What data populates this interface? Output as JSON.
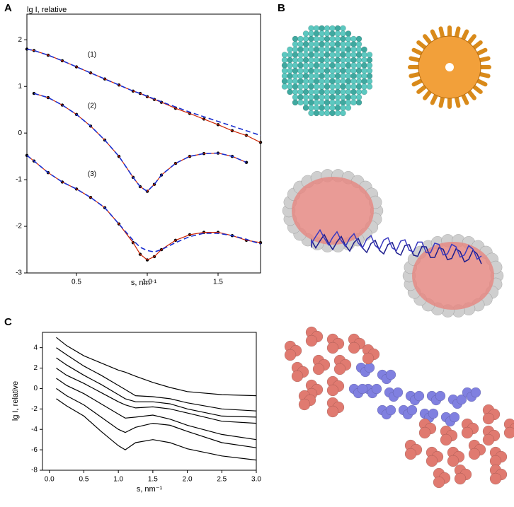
{
  "panel_labels": [
    "A",
    "B",
    "C"
  ],
  "chart_data": [
    {
      "type": "line",
      "x_label": "s, nm⁻¹",
      "y_label": "lg I, relative",
      "x": [
        0.15,
        0.2,
        0.3,
        0.4,
        0.5,
        0.6,
        0.7,
        0.8,
        0.9,
        0.95,
        1.0,
        1.05,
        1.1,
        1.2,
        1.3,
        1.4,
        1.5,
        1.6,
        1.7,
        1.8
      ],
      "xlim": [
        0.15,
        1.8
      ],
      "xticks": [
        0.5,
        {
          "value": 1,
          "label": "1.0"
        },
        1.5
      ],
      "ylim": [
        -3,
        2.55
      ],
      "yticks": [
        -3,
        -2,
        -1,
        0,
        1,
        2
      ],
      "annotations": [
        {
          "text": "(1)",
          "x": 0.61,
          "y": 1.68
        },
        {
          "text": "(2)",
          "x": 0.61,
          "y": 0.58
        },
        {
          "text": "(3)",
          "x": 0.61,
          "y": -0.88
        }
      ],
      "series": [
        {
          "style": "points",
          "color": "#000000",
          "values": [
            1.8,
            1.77,
            1.67,
            1.55,
            1.42,
            1.29,
            1.16,
            1.03,
            0.9,
            0.85,
            0.78,
            0.72,
            0.66,
            0.53,
            0.42,
            0.3,
            0.18,
            0.05,
            -0.05,
            -0.2
          ]
        },
        {
          "style": "line",
          "color": "#cc2200",
          "values": [
            1.8,
            1.77,
            1.67,
            1.55,
            1.42,
            1.29,
            1.16,
            1.03,
            0.9,
            0.85,
            0.78,
            0.72,
            0.66,
            0.53,
            0.42,
            0.3,
            0.18,
            0.05,
            -0.05,
            -0.2
          ]
        },
        {
          "style": "dashed",
          "color": "#1a2fd0",
          "values": [
            1.8,
            1.77,
            1.67,
            1.55,
            1.42,
            1.29,
            1.16,
            1.03,
            0.9,
            0.85,
            0.79,
            0.73,
            0.67,
            0.56,
            0.45,
            0.35,
            0.25,
            0.15,
            0.05,
            -0.05
          ]
        },
        {
          "style": "points",
          "color": "#000000",
          "values": [
            null,
            0.85,
            0.76,
            0.6,
            0.4,
            0.15,
            -0.15,
            -0.5,
            -0.95,
            -1.15,
            -1.25,
            -1.1,
            -0.9,
            -0.65,
            -0.5,
            -0.44,
            -0.43,
            -0.5,
            -0.63,
            null
          ]
        },
        {
          "style": "line",
          "color": "#cc2200",
          "values": [
            null,
            0.85,
            0.76,
            0.6,
            0.4,
            0.15,
            -0.15,
            -0.5,
            -0.95,
            -1.15,
            -1.25,
            -1.1,
            -0.9,
            -0.65,
            -0.5,
            -0.44,
            -0.43,
            -0.5,
            -0.63,
            null
          ]
        },
        {
          "style": "dashed",
          "color": "#1a2fd0",
          "values": [
            null,
            0.85,
            0.76,
            0.6,
            0.4,
            0.15,
            -0.15,
            -0.5,
            -0.95,
            -1.15,
            -1.25,
            -1.1,
            -0.9,
            -0.65,
            -0.5,
            -0.44,
            -0.43,
            -0.5,
            -0.63,
            null
          ]
        },
        {
          "style": "points",
          "color": "#000000",
          "values": [
            -0.48,
            -0.6,
            -0.85,
            -1.05,
            -1.2,
            -1.38,
            -1.6,
            -1.95,
            -2.35,
            -2.6,
            -2.72,
            -2.65,
            -2.5,
            -2.3,
            -2.18,
            -2.13,
            -2.13,
            -2.2,
            -2.3,
            -2.35
          ]
        },
        {
          "style": "line",
          "color": "#cc2200",
          "values": [
            -0.48,
            -0.6,
            -0.85,
            -1.05,
            -1.2,
            -1.38,
            -1.6,
            -1.95,
            -2.35,
            -2.6,
            -2.72,
            -2.65,
            -2.5,
            -2.3,
            -2.18,
            -2.13,
            -2.13,
            -2.2,
            -2.3,
            -2.35
          ]
        },
        {
          "style": "dashed",
          "color": "#1a2fd0",
          "values": [
            -0.48,
            -0.6,
            -0.85,
            -1.05,
            -1.2,
            -1.38,
            -1.6,
            -1.95,
            -2.3,
            -2.45,
            -2.52,
            -2.55,
            -2.5,
            -2.35,
            -2.22,
            -2.15,
            -2.15,
            -2.2,
            -2.28,
            -2.38
          ]
        }
      ]
    },
    {
      "type": "line",
      "x_label": "s, nm⁻¹",
      "y_label": "lg I, relative",
      "x": [
        0.1,
        0.25,
        0.5,
        0.75,
        1.0,
        1.1,
        1.25,
        1.5,
        1.75,
        2.0,
        2.5,
        3.0
      ],
      "xlim": [
        -0.1,
        3.0
      ],
      "xticks": [
        {
          "value": 0,
          "label": "0.0"
        },
        0.5,
        {
          "value": 1,
          "label": "1.0"
        },
        1.5,
        {
          "value": 2,
          "label": "2.0"
        },
        2.5,
        {
          "value": 3,
          "label": "3.0"
        }
      ],
      "ylim": [
        -8,
        5.5
      ],
      "yticks": [
        -8,
        -6,
        -4,
        -2,
        0,
        2,
        4
      ],
      "series": [
        {
          "style": "line",
          "color": "#000000",
          "values": [
            5,
            4.2,
            3.2,
            2.5,
            1.8,
            1.6,
            1.2,
            0.6,
            0.1,
            -0.3,
            -0.6,
            -0.7
          ]
        },
        {
          "style": "line",
          "color": "#000000",
          "values": [
            4,
            3.3,
            2.2,
            1.3,
            0.3,
            -0.1,
            -0.7,
            -0.8,
            -1.0,
            -1.4,
            -2.0,
            -2.2
          ]
        },
        {
          "style": "line",
          "color": "#000000",
          "values": [
            3,
            2.3,
            1.3,
            0.4,
            -0.6,
            -1.0,
            -1.3,
            -1.3,
            -1.5,
            -2.0,
            -2.7,
            -2.8
          ]
        },
        {
          "style": "line",
          "color": "#000000",
          "values": [
            2,
            1.3,
            0.5,
            -0.4,
            -1.3,
            -1.6,
            -1.9,
            -1.8,
            -2.0,
            -2.4,
            -3.2,
            -3.4
          ]
        },
        {
          "style": "line",
          "color": "#000000",
          "values": [
            1,
            0.3,
            -0.5,
            -1.5,
            -2.5,
            -2.9,
            -2.8,
            -2.6,
            -3.0,
            -3.6,
            -4.5,
            -5.0
          ]
        },
        {
          "style": "line",
          "color": "#000000",
          "values": [
            0,
            -0.7,
            -1.6,
            -2.8,
            -4.0,
            -4.3,
            -3.8,
            -3.4,
            -3.6,
            -4.2,
            -5.3,
            -5.8
          ]
        },
        {
          "style": "line",
          "color": "#000000",
          "values": [
            -1,
            -1.7,
            -2.7,
            -4.2,
            -5.6,
            -6.0,
            -5.3,
            -5.0,
            -5.3,
            -5.9,
            -6.6,
            -7.0
          ]
        }
      ]
    }
  ]
}
